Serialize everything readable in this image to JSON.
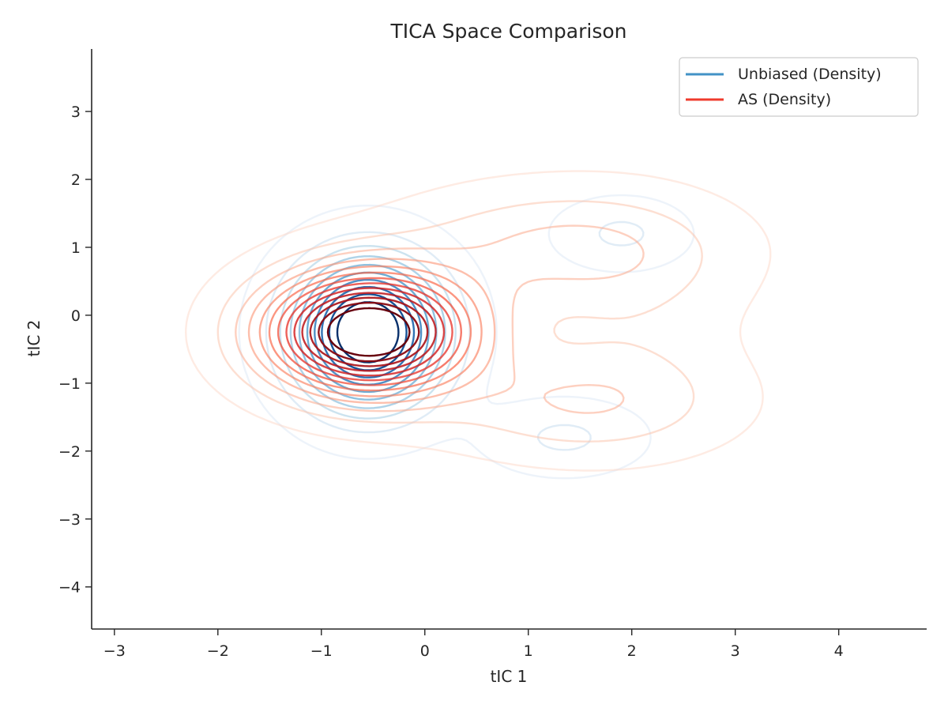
{
  "chart_data": {
    "type": "contour",
    "title": "TICA Space Comparison",
    "xlabel": "tIC 1",
    "ylabel": "tIC 2",
    "xlim": [
      -3.22,
      4.85
    ],
    "ylim": [
      -4.62,
      3.92
    ],
    "xticks": [
      -3,
      -2,
      -1,
      0,
      1,
      2,
      3,
      4
    ],
    "xtick_labels": [
      "−3",
      "−2",
      "−1",
      "0",
      "1",
      "2",
      "3",
      "4"
    ],
    "yticks": [
      -4,
      -3,
      -2,
      -1,
      0,
      1,
      2,
      3
    ],
    "ytick_labels": [
      "−4",
      "−3",
      "−2",
      "−1",
      "0",
      "1",
      "2",
      "3"
    ],
    "grid": false,
    "legend_position": "upper right",
    "series": [
      {
        "name": "Unbiased (Density)",
        "legend_color": "#4292c6",
        "levels": 10,
        "modes": [
          {
            "center": [
              -0.55,
              -0.25
            ],
            "sigma": [
              0.48,
              0.72
            ],
            "weight": 1.0
          },
          {
            "center": [
              1.9,
              1.2
            ],
            "sigma": [
              0.42,
              0.34
            ],
            "weight": 0.14
          },
          {
            "center": [
              1.35,
              -1.8
            ],
            "sigma": [
              0.5,
              0.36
            ],
            "weight": 0.14
          }
        ]
      },
      {
        "name": "AS (Density)",
        "legend_color": "#ef3b2c",
        "levels": 13,
        "modes": [
          {
            "center": [
              -0.55,
              -0.25
            ],
            "sigma": [
              0.68,
              0.6
            ],
            "weight": 1.0
          },
          {
            "center": [
              1.3,
              1.0
            ],
            "sigma": [
              1.05,
              0.6
            ],
            "weight": 0.18
          },
          {
            "center": [
              1.5,
              -1.3
            ],
            "sigma": [
              0.95,
              0.55
            ],
            "weight": 0.16
          },
          {
            "center": [
              2.1,
              0.0
            ],
            "sigma": [
              0.7,
              1.0
            ],
            "weight": 0.06
          }
        ]
      }
    ]
  }
}
